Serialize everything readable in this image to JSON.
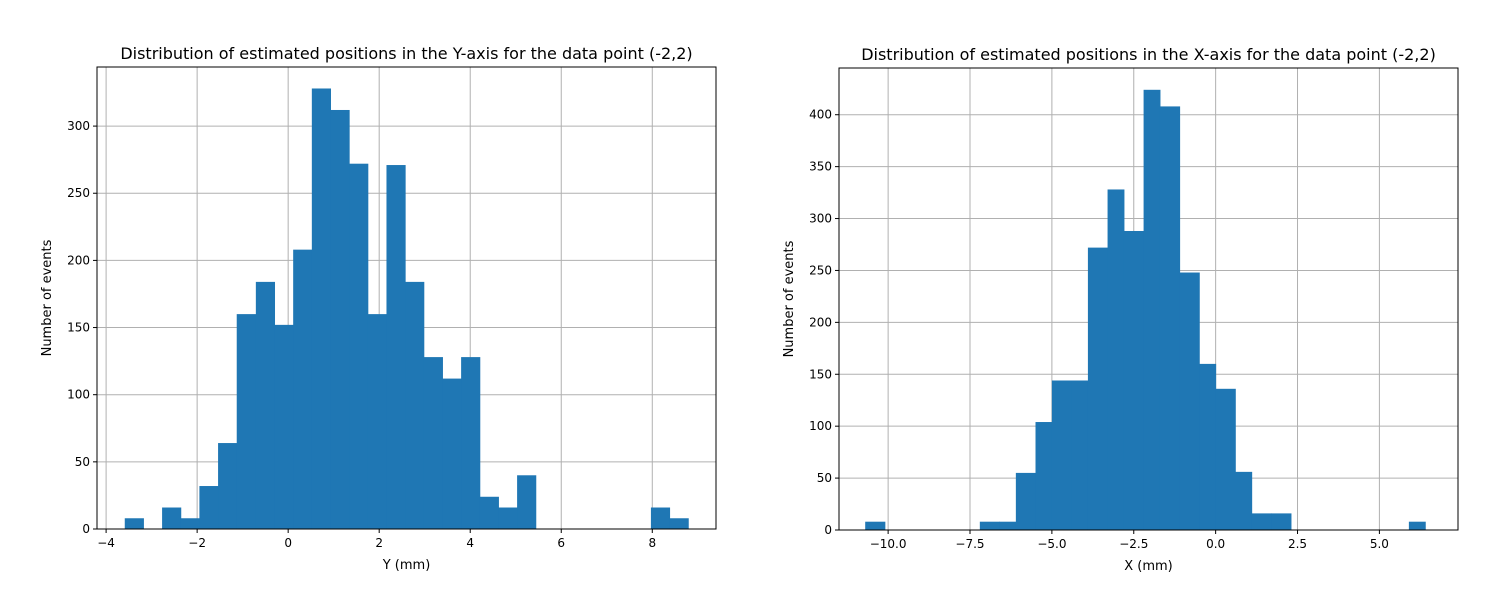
{
  "chart_data": [
    {
      "type": "bar",
      "title": "Distribution of estimated positions in the Y-axis for the data point (-2,2)",
      "xlabel": "Y (mm)",
      "ylabel": "Number of events",
      "xlim": [
        -4.2,
        9.4
      ],
      "ylim": [
        0,
        344
      ],
      "xticks": [
        -4,
        -2,
        0,
        2,
        4,
        6,
        8
      ],
      "yticks": [
        0,
        50,
        100,
        150,
        200,
        250,
        300
      ],
      "grid": true,
      "color": "#1f77b4",
      "bins": [
        {
          "x0": -3.59,
          "x1": -3.18,
          "count": 8
        },
        {
          "x0": -2.77,
          "x1": -2.36,
          "count": 16
        },
        {
          "x0": -2.36,
          "x1": -1.95,
          "count": 8
        },
        {
          "x0": -1.95,
          "x1": -1.54,
          "count": 32
        },
        {
          "x0": -1.54,
          "x1": -1.13,
          "count": 64
        },
        {
          "x0": -1.13,
          "x1": -0.71,
          "count": 160
        },
        {
          "x0": -0.71,
          "x1": -0.3,
          "count": 184
        },
        {
          "x0": -0.3,
          "x1": 0.11,
          "count": 152
        },
        {
          "x0": 0.11,
          "x1": 0.52,
          "count": 208
        },
        {
          "x0": 0.52,
          "x1": 0.93,
          "count": 328
        },
        {
          "x0": 0.93,
          "x1": 1.34,
          "count": 312
        },
        {
          "x0": 1.34,
          "x1": 1.75,
          "count": 272
        },
        {
          "x0": 1.75,
          "x1": 2.16,
          "count": 160
        },
        {
          "x0": 2.16,
          "x1": 2.57,
          "count": 271
        },
        {
          "x0": 2.57,
          "x1": 2.98,
          "count": 184
        },
        {
          "x0": 2.98,
          "x1": 3.39,
          "count": 128
        },
        {
          "x0": 3.39,
          "x1": 3.8,
          "count": 112
        },
        {
          "x0": 3.8,
          "x1": 4.21,
          "count": 128
        },
        {
          "x0": 4.21,
          "x1": 4.62,
          "count": 24
        },
        {
          "x0": 4.62,
          "x1": 5.03,
          "count": 16
        },
        {
          "x0": 5.03,
          "x1": 5.44,
          "count": 40
        },
        {
          "x0": 7.97,
          "x1": 8.38,
          "count": 16
        },
        {
          "x0": 8.38,
          "x1": 8.79,
          "count": 8
        }
      ]
    },
    {
      "type": "bar",
      "title": "Distribution of estimated positions in the X-axis for the data point (-2,2)",
      "xlabel": "X (mm)",
      "ylabel": "Number of events",
      "xlim": [
        -11.5,
        7.4
      ],
      "ylim": [
        0,
        445
      ],
      "xticks": [
        -10.0,
        -7.5,
        -5.0,
        -2.5,
        0.0,
        2.5,
        5.0
      ],
      "xtick_labels": [
        "−10.0",
        "−7.5",
        "−5.0",
        "−2.5",
        "0.0",
        "2.5",
        "5.0"
      ],
      "yticks": [
        0,
        50,
        100,
        150,
        200,
        250,
        300,
        350,
        400
      ],
      "grid": true,
      "color": "#1f77b4",
      "bins": [
        {
          "x0": -10.7,
          "x1": -10.1,
          "count": 8
        },
        {
          "x0": -7.2,
          "x1": -6.6,
          "count": 8
        },
        {
          "x0": -6.6,
          "x1": -6.1,
          "count": 8
        },
        {
          "x0": -6.1,
          "x1": -5.5,
          "count": 55
        },
        {
          "x0": -5.5,
          "x1": -5.0,
          "count": 104
        },
        {
          "x0": -5.0,
          "x1": -4.4,
          "count": 144
        },
        {
          "x0": -4.4,
          "x1": -3.9,
          "count": 144
        },
        {
          "x0": -3.9,
          "x1": -3.3,
          "count": 272
        },
        {
          "x0": -3.3,
          "x1": -2.8,
          "count": 328
        },
        {
          "x0": -2.8,
          "x1": -2.2,
          "count": 288
        },
        {
          "x0": -2.2,
          "x1": -1.7,
          "count": 424
        },
        {
          "x0": -1.7,
          "x1": -1.1,
          "count": 408
        },
        {
          "x0": -1.1,
          "x1": -0.5,
          "count": 248
        },
        {
          "x0": -0.5,
          "x1": 0.0,
          "count": 160
        },
        {
          "x0": 0.0,
          "x1": 0.6,
          "count": 136
        },
        {
          "x0": 0.6,
          "x1": 1.1,
          "count": 56
        },
        {
          "x0": 1.1,
          "x1": 1.7,
          "count": 16
        },
        {
          "x0": 1.7,
          "x1": 2.3,
          "count": 16
        },
        {
          "x0": 5.9,
          "x1": 6.4,
          "count": 8
        }
      ]
    }
  ]
}
